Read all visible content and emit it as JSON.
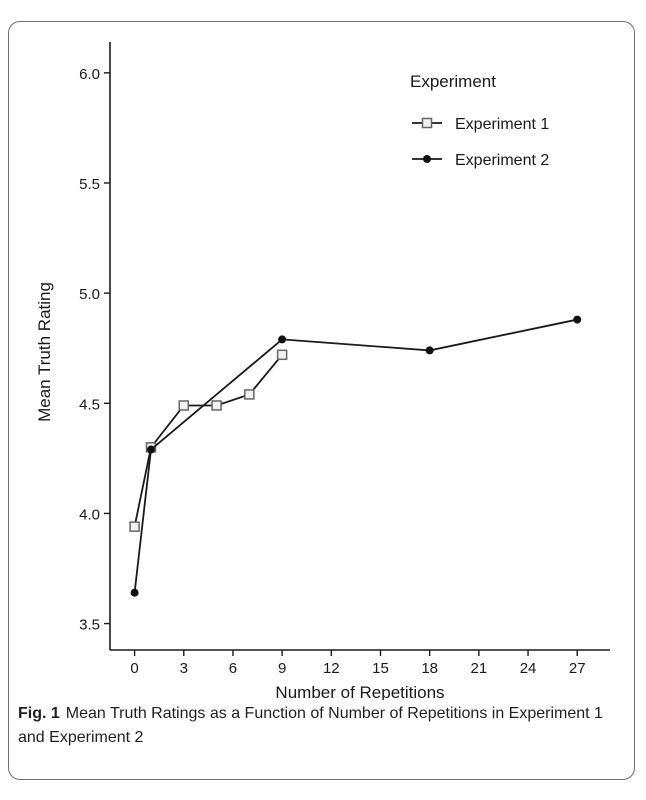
{
  "chart_data": {
    "type": "line",
    "xlabel": "Number of Repetitions",
    "ylabel": "Mean Truth Rating",
    "xlim": [
      -1.5,
      29
    ],
    "ylim": [
      3.38,
      6.14
    ],
    "xticks": [
      0,
      3,
      6,
      9,
      12,
      15,
      18,
      21,
      24,
      27
    ],
    "yticks": [
      3.5,
      4.0,
      4.5,
      5.0,
      5.5,
      6.0
    ],
    "ytick_labels": [
      "3.5",
      "4.0",
      "4.5",
      "5.0",
      "5.5",
      "6.0"
    ],
    "grid": false,
    "legend_title": "Experiment",
    "legend_position": "top-right",
    "series": [
      {
        "name": "Experiment 1",
        "marker": "open-square",
        "color": "#666666",
        "x": [
          0,
          1,
          3,
          5,
          7,
          9
        ],
        "y": [
          3.94,
          4.3,
          4.49,
          4.49,
          4.54,
          4.72
        ]
      },
      {
        "name": "Experiment 2",
        "marker": "filled-circle",
        "color": "#111111",
        "x": [
          0,
          1,
          9,
          18,
          27
        ],
        "y": [
          3.64,
          4.29,
          4.79,
          4.74,
          4.88
        ]
      }
    ]
  },
  "caption": {
    "label": "Fig. 1",
    "text": "Mean Truth Ratings as a Function of Number of Repetitions in Experiment 1 and Experiment 2"
  }
}
